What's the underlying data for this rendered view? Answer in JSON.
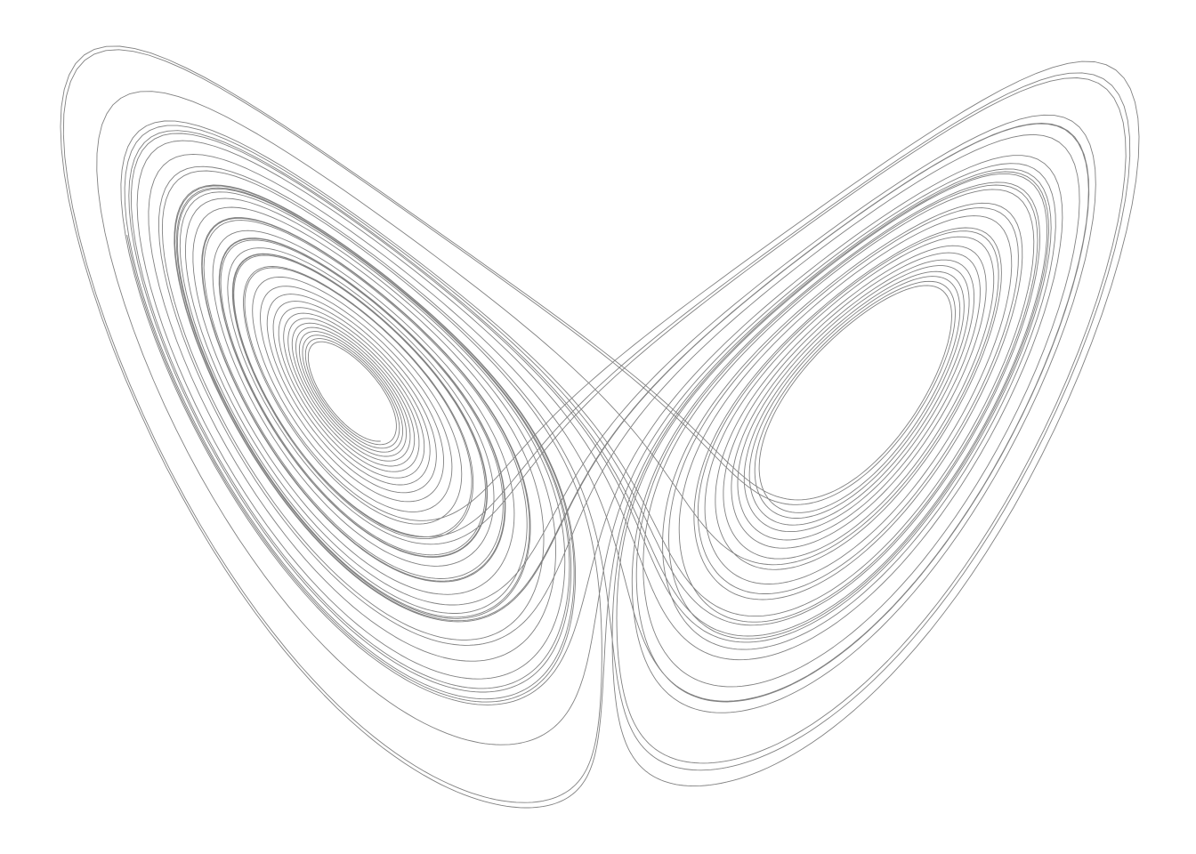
{
  "figure": {
    "background_color": "#ffffff",
    "line_color": "#1a1a1a",
    "line_opacity": 0.55
  },
  "attractor": {
    "model": "lorenz",
    "sigma": 10,
    "rho": 28,
    "beta": 2.6666667,
    "initial_point": [
      0.0,
      1.0,
      1.05
    ],
    "steps": 11000,
    "dt": 0.005
  }
}
